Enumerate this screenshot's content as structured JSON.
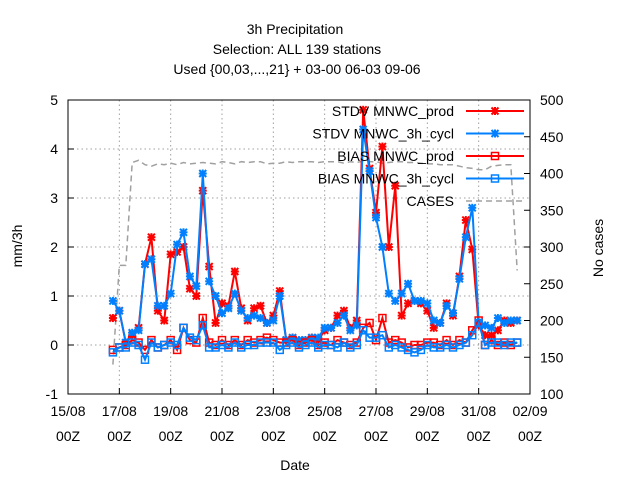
{
  "chart_data": {
    "type": "line",
    "title_lines": [
      "3h Precipitation",
      "Selection: ALL    139 stations",
      "Used {00,03,...,21} + 03-00 06-03 09-06"
    ],
    "xlabel": "Date",
    "ylabel": "mm/3h",
    "y2label": "No cases",
    "x_tick_labels": [
      {
        "day": 15,
        "top": "15/08",
        "bottom": "00Z"
      },
      {
        "day": 17,
        "top": "17/08",
        "bottom": "00Z"
      },
      {
        "day": 19,
        "top": "19/08",
        "bottom": "00Z"
      },
      {
        "day": 21,
        "top": "21/08",
        "bottom": "00Z"
      },
      {
        "day": 23,
        "top": "23/08",
        "bottom": "00Z"
      },
      {
        "day": 25,
        "top": "25/08",
        "bottom": "00Z"
      },
      {
        "day": 27,
        "top": "27/08",
        "bottom": "00Z"
      },
      {
        "day": 29,
        "top": "29/08",
        "bottom": "00Z"
      },
      {
        "day": 31,
        "top": "31/08",
        "bottom": "00Z"
      },
      {
        "day": 33,
        "top": "02/09",
        "bottom": "00Z"
      }
    ],
    "xlim": [
      15,
      33
    ],
    "ylim": [
      -1,
      5
    ],
    "yticks": [
      "-1",
      "0",
      "1",
      "2",
      "3",
      "4",
      "5"
    ],
    "y2lim": [
      100,
      500
    ],
    "y2ticks": [
      "100",
      "150",
      "200",
      "250",
      "300",
      "350",
      "400",
      "450",
      "500"
    ],
    "grid": true,
    "legend_position": "top-right",
    "x_unit_note": "x values are days of August 2024-style calendar counted from 15/08 00Z (15 = 15/08 00Z, 32 = 01/09 00Z)",
    "series": [
      {
        "name": "STDV MNWC_prod",
        "color": "#ff0000",
        "marker": "x",
        "axis": "y1",
        "x": [
          16.75,
          17.0,
          17.25,
          17.5,
          17.75,
          18.0,
          18.25,
          18.5,
          18.75,
          19.0,
          19.25,
          19.5,
          19.75,
          20.0,
          20.25,
          20.5,
          20.75,
          21.0,
          21.25,
          21.5,
          21.75,
          22.0,
          22.25,
          22.5,
          22.75,
          23.0,
          23.25,
          23.5,
          23.75,
          24.0,
          24.25,
          24.5,
          24.75,
          25.0,
          25.25,
          25.5,
          25.75,
          26.0,
          26.25,
          26.5,
          26.75,
          27.0,
          27.25,
          27.5,
          27.75,
          28.0,
          28.25,
          28.5,
          28.75,
          29.0,
          29.25,
          29.5,
          29.75,
          30.0,
          30.25,
          30.5,
          30.75,
          31.0,
          31.25,
          31.5,
          31.75,
          32.0,
          32.25,
          32.5
        ],
        "values": [
          0.55,
          0.7,
          0.05,
          0.2,
          0.35,
          1.65,
          2.2,
          0.7,
          0.5,
          1.85,
          1.9,
          2.0,
          1.15,
          1.0,
          3.15,
          1.6,
          0.45,
          0.85,
          0.8,
          1.5,
          0.75,
          0.5,
          0.75,
          0.8,
          0.45,
          0.6,
          1.1,
          0.1,
          0.15,
          0.05,
          0.1,
          0.15,
          0.1,
          0.3,
          0.35,
          0.6,
          0.7,
          0.35,
          0.5,
          4.8,
          3.6,
          2.7,
          4.05,
          2.0,
          3.25,
          0.6,
          0.85,
          0.9,
          0.85,
          0.7,
          0.35,
          0.45,
          0.85,
          0.6,
          1.4,
          2.55,
          1.95,
          0.4,
          0.2,
          0.2,
          0.3,
          0.5,
          0.45,
          0.5
        ]
      },
      {
        "name": "STDV MNWC_3h_cycl",
        "color": "#0080ff",
        "marker": "x",
        "axis": "y1",
        "x": [
          16.75,
          17.0,
          17.25,
          17.5,
          17.75,
          18.0,
          18.25,
          18.5,
          18.75,
          19.0,
          19.25,
          19.5,
          19.75,
          20.0,
          20.25,
          20.5,
          20.75,
          21.0,
          21.25,
          21.5,
          21.75,
          22.0,
          22.25,
          22.5,
          22.75,
          23.0,
          23.25,
          23.5,
          23.75,
          24.0,
          24.25,
          24.5,
          24.75,
          25.0,
          25.25,
          25.5,
          25.75,
          26.0,
          26.25,
          26.5,
          26.75,
          27.0,
          27.25,
          27.5,
          27.75,
          28.0,
          28.25,
          28.5,
          28.75,
          29.0,
          29.25,
          29.5,
          29.75,
          30.0,
          30.25,
          30.5,
          30.75,
          31.0,
          31.25,
          31.5,
          31.75,
          32.0,
          32.25,
          32.5
        ],
        "values": [
          0.9,
          0.7,
          0.05,
          0.25,
          0.3,
          1.65,
          1.75,
          0.8,
          0.8,
          1.05,
          2.05,
          2.3,
          1.4,
          1.2,
          3.5,
          1.3,
          1.0,
          0.65,
          0.75,
          1.05,
          0.7,
          0.55,
          0.6,
          0.55,
          0.45,
          0.5,
          1.0,
          0.1,
          0.15,
          0.1,
          0.1,
          0.15,
          0.15,
          0.35,
          0.35,
          0.45,
          0.6,
          0.3,
          0.4,
          4.4,
          3.55,
          2.6,
          2.0,
          1.05,
          0.9,
          1.05,
          1.25,
          0.9,
          0.9,
          0.85,
          0.5,
          0.45,
          0.8,
          0.65,
          1.35,
          2.2,
          2.8,
          0.45,
          0.4,
          0.35,
          0.55,
          0.45,
          0.5,
          0.5
        ]
      },
      {
        "name": "BIAS MNWC_prod",
        "color": "#ff0000",
        "marker": "square",
        "axis": "y1",
        "x": [
          16.75,
          17.0,
          17.25,
          17.5,
          17.75,
          18.0,
          18.25,
          18.5,
          18.75,
          19.0,
          19.25,
          19.5,
          19.75,
          20.0,
          20.25,
          20.5,
          20.75,
          21.0,
          21.25,
          21.5,
          21.75,
          22.0,
          22.25,
          22.5,
          22.75,
          23.0,
          23.25,
          23.5,
          23.75,
          24.0,
          24.25,
          24.5,
          24.75,
          25.0,
          25.25,
          25.5,
          25.75,
          26.0,
          26.25,
          26.5,
          26.75,
          27.0,
          27.25,
          27.5,
          27.75,
          28.0,
          28.25,
          28.5,
          28.75,
          29.0,
          29.25,
          29.5,
          29.75,
          30.0,
          30.25,
          30.5,
          30.75,
          31.0,
          31.25,
          31.5,
          31.75,
          32.0,
          32.25,
          32.5
        ],
        "values": [
          -0.1,
          -0.05,
          0.0,
          0.1,
          0.05,
          -0.1,
          0.1,
          -0.05,
          0.0,
          0.1,
          -0.1,
          0.35,
          0.1,
          0.05,
          0.55,
          0.05,
          0.0,
          0.1,
          0.0,
          0.1,
          0.0,
          0.1,
          0.05,
          0.1,
          0.15,
          0.1,
          0.05,
          0.05,
          0.1,
          0.0,
          0.05,
          0.1,
          0.0,
          0.05,
          0.0,
          0.1,
          0.05,
          0.0,
          0.05,
          0.35,
          0.45,
          0.1,
          0.55,
          0.05,
          0.1,
          0.05,
          -0.05,
          0.0,
          0.0,
          0.05,
          0.05,
          0.0,
          0.1,
          0.0,
          0.1,
          0.05,
          0.3,
          0.5,
          0.0,
          0.1,
          0.0,
          0.05,
          0.0,
          0.05
        ]
      },
      {
        "name": "BIAS MNWC_3h_cycl",
        "color": "#0080ff",
        "marker": "square",
        "axis": "y1",
        "x": [
          16.75,
          17.0,
          17.25,
          17.5,
          17.75,
          18.0,
          18.25,
          18.5,
          18.75,
          19.0,
          19.25,
          19.5,
          19.75,
          20.0,
          20.25,
          20.5,
          20.75,
          21.0,
          21.25,
          21.5,
          21.75,
          22.0,
          22.25,
          22.5,
          22.75,
          23.0,
          23.25,
          23.5,
          23.75,
          24.0,
          24.25,
          24.5,
          24.75,
          25.0,
          25.25,
          25.5,
          25.75,
          26.0,
          26.25,
          26.5,
          26.75,
          27.0,
          27.25,
          27.5,
          27.75,
          28.0,
          28.25,
          28.5,
          28.75,
          29.0,
          29.25,
          29.5,
          29.75,
          30.0,
          30.25,
          30.5,
          30.75,
          31.0,
          31.25,
          31.5,
          31.75,
          32.0,
          32.25,
          32.5
        ],
        "values": [
          -0.15,
          -0.05,
          -0.05,
          0.05,
          0.0,
          -0.3,
          0.05,
          -0.05,
          0.0,
          0.05,
          0.0,
          0.35,
          0.15,
          0.1,
          0.4,
          -0.05,
          -0.05,
          0.0,
          -0.05,
          0.05,
          -0.05,
          0.0,
          0.0,
          0.05,
          0.05,
          0.05,
          -0.1,
          0.0,
          0.05,
          -0.05,
          0.0,
          0.05,
          -0.05,
          0.0,
          0.0,
          -0.05,
          0.05,
          -0.05,
          0.0,
          0.3,
          0.15,
          0.15,
          0.2,
          -0.05,
          0.0,
          -0.05,
          -0.1,
          -0.15,
          -0.1,
          0.0,
          -0.05,
          -0.05,
          0.0,
          -0.05,
          0.0,
          0.05,
          0.2,
          0.45,
          0.0,
          0.05,
          0.05,
          0.0,
          0.05,
          0.05
        ]
      },
      {
        "name": "CASES",
        "color": "#a0a0a0",
        "marker": "none",
        "dashed": true,
        "axis": "y2",
        "x": [
          16.75,
          17.0,
          17.25,
          17.5,
          17.75,
          18.0,
          18.25,
          18.5,
          18.75,
          19.0,
          19.25,
          19.5,
          19.75,
          20.0,
          20.25,
          20.5,
          20.75,
          21.0,
          21.25,
          21.5,
          21.75,
          22.0,
          22.25,
          22.5,
          22.75,
          23.0,
          23.25,
          23.5,
          23.75,
          24.0,
          24.25,
          24.5,
          24.75,
          25.0,
          25.25,
          25.5,
          25.75,
          26.0,
          26.25,
          26.5,
          26.75,
          27.0,
          27.25,
          27.5,
          27.75,
          28.0,
          28.25,
          28.5,
          28.75,
          29.0,
          29.25,
          29.5,
          29.75,
          30.0,
          30.25,
          30.5,
          30.75,
          31.0,
          31.25,
          31.5,
          31.75,
          32.0,
          32.25,
          32.5
        ],
        "values": [
          140,
          275,
          275,
          415,
          418,
          412,
          410,
          413,
          412,
          414,
          412,
          415,
          413,
          414,
          415,
          414,
          413,
          416,
          415,
          413,
          416,
          415,
          416,
          416,
          413,
          414,
          414,
          416,
          415,
          416,
          416,
          416,
          415,
          416,
          416,
          416,
          414,
          416,
          415,
          417,
          416,
          416,
          414,
          415,
          416,
          416,
          415,
          415,
          414,
          413,
          413,
          412,
          412,
          412,
          410,
          408,
          407,
          405,
          405,
          410,
          411,
          412,
          412,
          268
        ]
      }
    ]
  }
}
